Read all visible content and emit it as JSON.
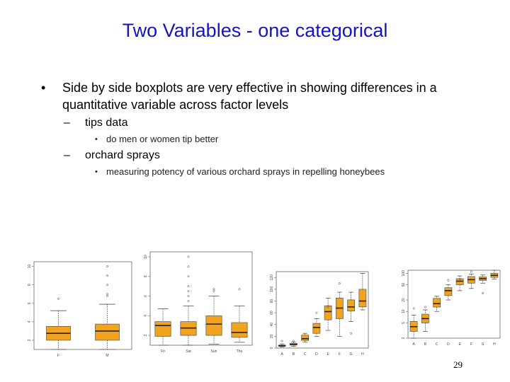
{
  "slide": {
    "title": "Two Variables - one categorical",
    "bullet1": "Side by side boxplots are very effective in showing differences in a quantitative variable across factor levels",
    "sub1": "tips data",
    "sub1_note": "do men or women tip better",
    "sub2": "orchard sprays",
    "sub2_note": "measuring potency of various orchard sprays in repelling honeybees",
    "bullet_char": "•",
    "dash_char": "–",
    "page_number": "29"
  },
  "colors": {
    "title": "#1515c0",
    "box_fill": "#f2a31e",
    "box_stroke": "#555555"
  },
  "chart_data": [
    {
      "type": "box",
      "categories": [
        "F",
        "M"
      ],
      "yticks": [
        "2",
        "4",
        "6",
        "8",
        "10"
      ],
      "ylim": [
        1,
        10.5
      ],
      "boxes": [
        {
          "lo": 1,
          "q1": 2.0,
          "med": 2.75,
          "q3": 3.5,
          "hi": 5.2,
          "out": [
            6.5
          ]
        },
        {
          "lo": 1,
          "q1": 2.0,
          "med": 3.0,
          "q3": 3.75,
          "hi": 5.9,
          "out": [
            7,
            8,
            9,
            10,
            6.8
          ]
        }
      ]
    },
    {
      "type": "box",
      "categories": [
        "Fri",
        "Sat",
        "Sun",
        "Thu"
      ],
      "yticks": [
        "2",
        "4",
        "6",
        "8",
        "10"
      ],
      "ylim": [
        1,
        10.5
      ],
      "boxes": [
        {
          "lo": 1,
          "q1": 1.9,
          "med": 3.0,
          "q3": 3.4,
          "hi": 4.7,
          "out": []
        },
        {
          "lo": 1,
          "q1": 2.0,
          "med": 2.75,
          "q3": 3.4,
          "hi": 5.0,
          "out": [
            5.5,
            6,
            6.5,
            7,
            8,
            9,
            10
          ]
        },
        {
          "lo": 1.1,
          "q1": 2.0,
          "med": 3.15,
          "q3": 4.0,
          "hi": 6.0,
          "out": [
            6.5,
            6.7
          ]
        },
        {
          "lo": 1.3,
          "q1": 1.8,
          "med": 2.3,
          "q3": 3.3,
          "hi": 5.0,
          "out": [
            6.7
          ]
        }
      ]
    },
    {
      "type": "box",
      "categories": [
        "A",
        "B",
        "C",
        "D",
        "E",
        "F",
        "G",
        "H"
      ],
      "yticks": [
        "0",
        "20",
        "40",
        "60",
        "80",
        "100",
        "120"
      ],
      "ylim": [
        0,
        130
      ],
      "boxes": [
        {
          "lo": 2,
          "q1": 3,
          "med": 4,
          "q3": 5,
          "hi": 7,
          "out": [
            12
          ]
        },
        {
          "lo": 3,
          "q1": 5,
          "med": 6,
          "q3": 8,
          "hi": 10,
          "out": [
            12
          ]
        },
        {
          "lo": 10,
          "q1": 13,
          "med": 16,
          "q3": 22,
          "hi": 25,
          "out": []
        },
        {
          "lo": 20,
          "q1": 25,
          "med": 35,
          "q3": 42,
          "hi": 50,
          "out": [
            60
          ]
        },
        {
          "lo": 30,
          "q1": 48,
          "med": 62,
          "q3": 72,
          "hi": 85,
          "out": [
            70
          ]
        },
        {
          "lo": 20,
          "q1": 50,
          "med": 68,
          "q3": 85,
          "hi": 95,
          "out": [
            110
          ]
        },
        {
          "lo": 45,
          "q1": 63,
          "med": 70,
          "q3": 82,
          "hi": 95,
          "out": [
            25
          ]
        },
        {
          "lo": 65,
          "q1": 70,
          "med": 80,
          "q3": 100,
          "hi": 127,
          "out": []
        }
      ]
    },
    {
      "type": "box",
      "categories": [
        "A",
        "B",
        "C",
        "D",
        "E",
        "F",
        "G",
        "H"
      ],
      "yticks": [
        "2",
        "5",
        "10",
        "20",
        "50",
        "100"
      ],
      "ylim": [
        2,
        120
      ],
      "log": true,
      "boxes": [
        {
          "lo": 2,
          "q1": 3,
          "med": 4,
          "q3": 5.5,
          "hi": 8,
          "out": [
            12
          ]
        },
        {
          "lo": 3,
          "q1": 5,
          "med": 6.5,
          "q3": 8.5,
          "hi": 11,
          "out": [
            13
          ]
        },
        {
          "lo": 10,
          "q1": 13,
          "med": 16,
          "q3": 22,
          "hi": 25,
          "out": []
        },
        {
          "lo": 20,
          "q1": 26,
          "med": 35,
          "q3": 42,
          "hi": 50,
          "out": [
            65
          ]
        },
        {
          "lo": 35,
          "q1": 50,
          "med": 62,
          "q3": 72,
          "hi": 85,
          "out": [
            70
          ]
        },
        {
          "lo": 40,
          "q1": 55,
          "med": 68,
          "q3": 82,
          "hi": 95,
          "out": [
            110
          ]
        },
        {
          "lo": 55,
          "q1": 65,
          "med": 72,
          "q3": 80,
          "hi": 90,
          "out": [
            30
          ]
        },
        {
          "lo": 70,
          "q1": 78,
          "med": 88,
          "q3": 100,
          "hi": 120,
          "out": []
        }
      ]
    }
  ]
}
